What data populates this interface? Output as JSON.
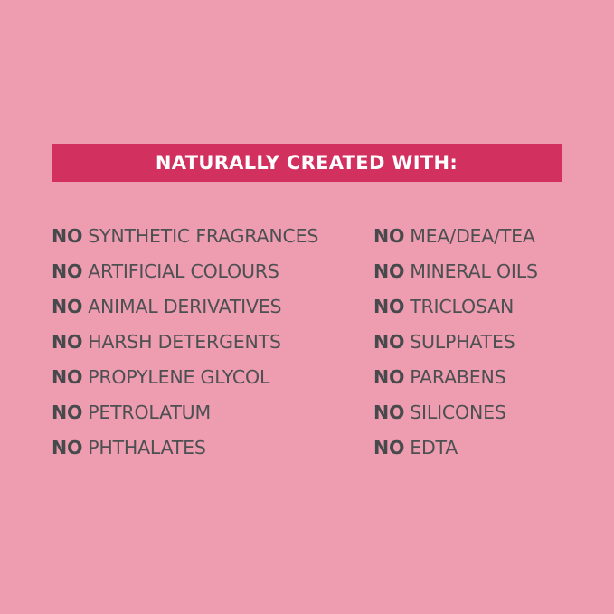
{
  "colors": {
    "background": "#ee9cb0",
    "banner": "#d2305f",
    "banner_text": "#ffffff",
    "body_text": "#4d5052"
  },
  "banner": {
    "title": "NATURALLY CREATED WITH:"
  },
  "prefix": "NO",
  "left_items": [
    "SYNTHETIC FRAGRANCES",
    "ARTIFICIAL COLOURS",
    "ANIMAL DERIVATIVES",
    "HARSH DETERGENTS",
    "PROPYLENE GLYCOL",
    "PETROLATUM",
    "PHTHALATES"
  ],
  "right_items": [
    "MEA/DEA/TEA",
    "MINERAL OILS",
    "TRICLOSAN",
    "SULPHATES",
    "PARABENS",
    "SILICONES",
    "EDTA"
  ]
}
